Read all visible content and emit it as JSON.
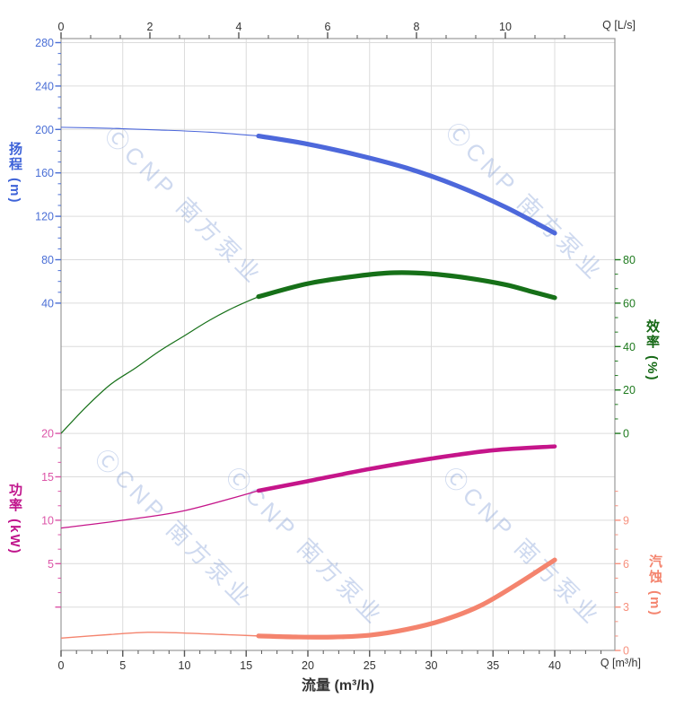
{
  "watermark": {
    "text": "ⒸCNP 南方泵业"
  },
  "axes": {
    "top": {
      "unit": "Q [L/s]",
      "ticks": [
        0,
        2,
        4,
        6,
        8,
        10
      ]
    },
    "bottom": {
      "unit": "Q [m³/h]",
      "title": "流量 (m³/h)",
      "ticks": [
        0,
        5,
        10,
        15,
        20,
        25,
        30,
        35,
        40
      ]
    },
    "head": {
      "title": "扬程 (m)",
      "ticks": [
        280,
        240,
        200,
        160,
        120,
        80,
        40
      ]
    },
    "power": {
      "title": "功率 (kW)",
      "ticks": [
        20,
        15,
        10,
        5
      ]
    },
    "eff": {
      "title": "效率 (%)",
      "ticks": [
        80,
        60,
        40,
        20,
        0
      ]
    },
    "npsh": {
      "title": "汽蚀 (m)",
      "ticks": [
        9,
        6,
        3,
        0
      ]
    }
  },
  "colors": {
    "grid": "#DCDCDC",
    "border": "#999999",
    "axis_text": "#333333",
    "tick_dark": "#555555",
    "head": "#4D68DB",
    "head_text": "#4B6FD6",
    "eff": "#167018",
    "eff_text": "#1E7A1E",
    "power": "#C5158A",
    "power_text": "#DC55A8",
    "npsh": "#F4846E",
    "npsh_text": "#F7917E",
    "watermark": "rgba(127,156,213,0.38)"
  },
  "chart_data": {
    "type": "line",
    "x_label": "流量 (m³/h)",
    "x_unit_bottom": "Q [m³/h]",
    "x_unit_top": "Q [L/s]",
    "x_range": [
      0,
      40
    ],
    "grid": true,
    "thick_segment_from_q": 16,
    "axes_ranges": {
      "head_m": [
        40,
        280
      ],
      "eff_pct": [
        0,
        80
      ],
      "power_kw": [
        5,
        20
      ],
      "npsh_m": [
        0,
        9
      ]
    },
    "series": [
      {
        "name": "扬程",
        "unit": "m",
        "axis": "head",
        "color": "#4D68DB",
        "x": [
          0,
          4,
          8,
          12,
          16,
          20,
          24,
          28,
          32,
          36,
          40
        ],
        "values": [
          202,
          201,
          199.5,
          197.5,
          194,
          186.5,
          176.5,
          164.5,
          148.5,
          128.5,
          104.5
        ]
      },
      {
        "name": "效率",
        "unit": "%",
        "axis": "eff",
        "color": "#167018",
        "x": [
          0,
          2,
          4,
          6,
          8,
          10,
          12,
          14,
          16,
          20,
          24,
          27,
          30,
          33,
          36,
          38,
          40
        ],
        "values": [
          0,
          12,
          22.5,
          30,
          38,
          45,
          52,
          58,
          63,
          69,
          72.5,
          74,
          73.5,
          71.5,
          68.5,
          65.5,
          62.5
        ]
      },
      {
        "name": "功率",
        "unit": "kW",
        "axis": "power",
        "color": "#C5158A",
        "x": [
          0,
          5,
          10,
          16,
          20,
          25,
          30,
          35,
          40
        ],
        "values": [
          9.1,
          10.0,
          11.1,
          13.4,
          14.5,
          15.9,
          17.1,
          18.05,
          18.5
        ]
      },
      {
        "name": "汽蚀",
        "unit": "m",
        "axis": "npsh",
        "color": "#F4846E",
        "x": [
          0,
          4,
          7,
          10,
          13,
          16,
          19,
          22,
          25,
          28,
          31,
          34,
          37,
          40
        ],
        "values": [
          0.85,
          1.1,
          1.25,
          1.2,
          1.1,
          1.0,
          0.93,
          0.92,
          1.05,
          1.45,
          2.1,
          3.1,
          4.6,
          6.25
        ]
      }
    ]
  }
}
